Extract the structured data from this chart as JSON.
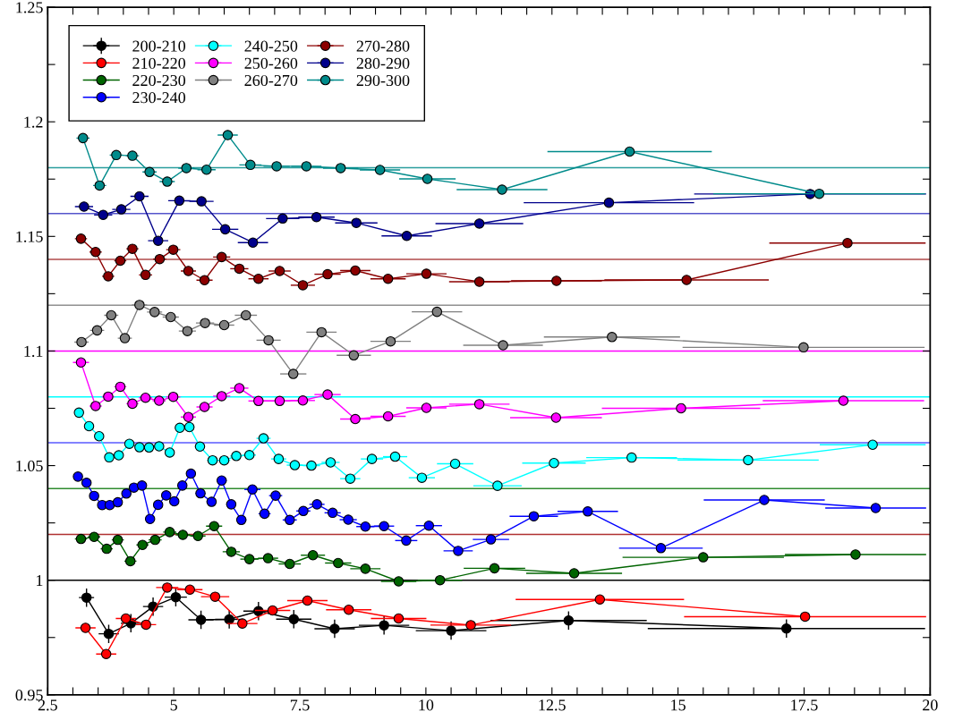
{
  "chart_data": {
    "type": "line",
    "marker": "circle",
    "line_style": "solid",
    "grid": false,
    "legend": "top left",
    "xlim": [
      2.5,
      20
    ],
    "ylim": [
      0.95,
      1.25
    ],
    "xticks": [
      2.5,
      {
        "value": 3,
        "label": null
      },
      {
        "value": 3.5,
        "label": null
      },
      {
        "value": 4,
        "label": null
      },
      {
        "value": 4.5,
        "label": null
      },
      5,
      {
        "value": 5.5,
        "label": null
      },
      {
        "value": 6,
        "label": null
      },
      {
        "value": 6.5,
        "label": null
      },
      {
        "value": 7,
        "label": null
      },
      7.5,
      {
        "value": 8,
        "label": null
      },
      {
        "value": 8.5,
        "label": null
      },
      {
        "value": 9,
        "label": null
      },
      {
        "value": 9.5,
        "label": null
      },
      10,
      {
        "value": 10.5,
        "label": null
      },
      {
        "value": 11,
        "label": null
      },
      {
        "value": 11.5,
        "label": null
      },
      {
        "value": 12,
        "label": null
      },
      12.5,
      {
        "value": 13,
        "label": null
      },
      {
        "value": 13.5,
        "label": null
      },
      {
        "value": 14,
        "label": null
      },
      {
        "value": 14.5,
        "label": null
      },
      15,
      {
        "value": 15.5,
        "label": null
      },
      {
        "value": 16,
        "label": null
      },
      {
        "value": 16.5,
        "label": null
      },
      {
        "value": 17,
        "label": null
      },
      17.5,
      {
        "value": 18,
        "label": null
      },
      {
        "value": 18.5,
        "label": null
      },
      {
        "value": 19,
        "label": null
      },
      {
        "value": 19.5,
        "label": null
      },
      20
    ],
    "yticks": [
      0.95,
      {
        "value": 0.975,
        "label": null
      },
      1,
      {
        "value": 1.025,
        "label": null
      },
      1.05,
      {
        "value": 1.075,
        "label": null
      },
      1.1,
      {
        "value": 1.125,
        "label": null
      },
      1.15,
      {
        "value": 1.175,
        "label": null
      },
      1.2,
      {
        "value": 1.225,
        "label": null
      },
      1.25
    ],
    "ref_lines": [
      {
        "axis": "y",
        "value": 1.18,
        "color": "#2a9d9d"
      },
      {
        "axis": "y",
        "value": 1.16,
        "color": "#5555cc"
      },
      {
        "axis": "y",
        "value": 1.14,
        "color": "#b04a4a"
      },
      {
        "axis": "y",
        "value": 1.12,
        "color": "#909090"
      },
      {
        "axis": "y",
        "value": 1.1,
        "color": "#ff00ff"
      },
      {
        "axis": "y",
        "value": 1.08,
        "color": "#00ffff"
      },
      {
        "axis": "y",
        "value": 1.06,
        "color": "#5a5aff"
      },
      {
        "axis": "y",
        "value": 1.04,
        "color": "#2e8b2e"
      },
      {
        "axis": "y",
        "value": 1.02,
        "color": "#b03030"
      },
      {
        "axis": "y",
        "value": 1.0,
        "color": "#000000"
      }
    ],
    "series": [
      {
        "name": "200-210",
        "color": "#000000",
        "x": [
          3.27,
          3.71,
          4.15,
          4.59,
          5.04,
          5.54,
          6.1,
          6.68,
          7.38,
          8.19,
          9.17,
          10.5,
          12.83,
          17.15
        ],
        "values": [
          0.9924,
          0.9766,
          0.9812,
          0.9885,
          0.9926,
          0.9827,
          0.9829,
          0.9865,
          0.983,
          0.9788,
          0.9803,
          0.978,
          0.9824,
          0.9789
        ],
        "errors": [
          0.004,
          0.004,
          0.004,
          0.004,
          0.004,
          0.004,
          0.004,
          0.004,
          0.004,
          0.004,
          0.004,
          0.004,
          0.004,
          0.004
        ],
        "xerrors": [
          0.15,
          0.2,
          0.2,
          0.2,
          0.22,
          0.25,
          0.28,
          0.3,
          0.35,
          0.4,
          0.5,
          0.7,
          1.55,
          2.75
        ]
      },
      {
        "name": "210-220",
        "color": "#ff0000",
        "x": [
          3.25,
          3.66,
          4.05,
          4.45,
          4.87,
          5.32,
          5.82,
          6.36,
          6.96,
          7.65,
          8.47,
          9.46,
          10.89,
          13.45,
          17.52
        ],
        "values": [
          0.9792,
          0.9678,
          0.9833,
          0.9806,
          0.9968,
          0.9959,
          0.9928,
          0.9811,
          0.9868,
          0.9911,
          0.9871,
          0.9833,
          0.9804,
          0.9916,
          0.9841
        ],
        "xerrors": [
          0.2,
          0.2,
          0.2,
          0.2,
          0.22,
          0.25,
          0.28,
          0.3,
          0.35,
          0.4,
          0.45,
          0.55,
          0.8,
          1.67,
          2.4
        ]
      },
      {
        "name": "220-230",
        "color": "#006400",
        "x": [
          3.16,
          3.42,
          3.67,
          3.89,
          4.14,
          4.38,
          4.63,
          4.92,
          5.18,
          5.48,
          5.8,
          6.14,
          6.5,
          6.87,
          7.3,
          7.76,
          8.26,
          8.8,
          9.46,
          10.28,
          11.36,
          12.94,
          15.5,
          18.52
        ],
        "values": [
          1.018,
          1.0189,
          1.0137,
          1.0176,
          1.0083,
          1.0154,
          1.0176,
          1.021,
          1.0198,
          1.0193,
          1.0236,
          1.0124,
          1.0092,
          1.0096,
          1.0071,
          1.0109,
          1.0075,
          1.005,
          0.9995,
          1.0,
          1.0052,
          1.003,
          1.01,
          1.0112
        ],
        "xerrors": [
          0.12,
          0.12,
          0.12,
          0.12,
          0.12,
          0.12,
          0.13,
          0.13,
          0.14,
          0.15,
          0.16,
          0.17,
          0.18,
          0.2,
          0.22,
          0.24,
          0.26,
          0.3,
          0.35,
          0.44,
          0.61,
          0.95,
          1.6,
          1.4
        ]
      },
      {
        "name": "230-240",
        "color": "#0000ff",
        "x": [
          3.1,
          3.27,
          3.42,
          3.58,
          3.73,
          3.89,
          4.06,
          4.21,
          4.37,
          4.53,
          4.69,
          4.85,
          5.01,
          5.17,
          5.34,
          5.53,
          5.75,
          5.95,
          6.14,
          6.34,
          6.56,
          6.8,
          7.02,
          7.3,
          7.57,
          7.84,
          8.15,
          8.46,
          8.8,
          9.17,
          9.61,
          10.06,
          10.64,
          11.29,
          12.14,
          13.21,
          14.66,
          16.71,
          18.92
        ],
        "values": [
          1.0452,
          1.0425,
          1.0368,
          1.0328,
          1.0328,
          1.034,
          1.0378,
          1.0404,
          1.0413,
          1.0267,
          1.0329,
          1.037,
          1.0344,
          1.0413,
          1.0465,
          1.0379,
          1.0342,
          1.0435,
          1.0331,
          1.0263,
          1.0396,
          1.029,
          1.0369,
          1.0263,
          1.0302,
          1.0331,
          1.0294,
          1.0264,
          1.0234,
          1.0236,
          1.0173,
          1.0238,
          1.0128,
          1.0178,
          1.0279,
          1.03,
          1.014,
          1.035,
          1.0315
        ],
        "xerrors": [
          0.08,
          0.08,
          0.08,
          0.08,
          0.08,
          0.08,
          0.08,
          0.08,
          0.08,
          0.08,
          0.08,
          0.08,
          0.08,
          0.08,
          0.09,
          0.1,
          0.1,
          0.1,
          0.1,
          0.1,
          0.16,
          0.12,
          0.13,
          0.14,
          0.14,
          0.15,
          0.16,
          0.17,
          0.18,
          0.2,
          0.22,
          0.26,
          0.29,
          0.36,
          0.48,
          0.6,
          0.83,
          1.2,
          1.0
        ]
      },
      {
        "name": "240-250",
        "color": "#00ffff",
        "x": [
          3.12,
          3.32,
          3.52,
          3.72,
          3.91,
          4.12,
          4.32,
          4.51,
          4.71,
          4.92,
          5.12,
          5.31,
          5.52,
          5.77,
          6.0,
          6.24,
          6.5,
          6.78,
          7.08,
          7.4,
          7.73,
          8.11,
          8.5,
          8.93,
          9.39,
          9.92,
          10.58,
          11.42,
          12.54,
          14.08,
          16.39,
          18.86
        ],
        "values": [
          1.0731,
          1.0672,
          1.0628,
          1.0536,
          1.0545,
          1.0595,
          1.058,
          1.0579,
          1.0584,
          1.0557,
          1.0665,
          1.0668,
          1.0583,
          1.0523,
          1.0523,
          1.0542,
          1.0546,
          1.0619,
          1.0529,
          1.0502,
          1.05,
          1.0514,
          1.0443,
          1.0529,
          1.0539,
          1.0447,
          1.0508,
          1.0412,
          1.0511,
          1.0535,
          1.0524,
          1.0591
        ],
        "xerrors": [
          0.08,
          0.08,
          0.08,
          0.08,
          0.08,
          0.08,
          0.08,
          0.08,
          0.08,
          0.08,
          0.09,
          0.1,
          0.1,
          0.11,
          0.12,
          0.12,
          0.13,
          0.14,
          0.15,
          0.16,
          0.17,
          0.18,
          0.2,
          0.22,
          0.24,
          0.26,
          0.36,
          0.48,
          0.63,
          0.9,
          1.4,
          1.05
        ]
      },
      {
        "name": "250-260",
        "color": "#ff00ff",
        "x": [
          3.16,
          3.45,
          3.7,
          3.94,
          4.18,
          4.44,
          4.71,
          4.99,
          5.29,
          5.61,
          5.95,
          6.3,
          6.68,
          7.1,
          7.56,
          8.05,
          8.6,
          9.25,
          10.01,
          11.06,
          12.58,
          15.06,
          18.28
        ],
        "values": [
          1.095,
          1.076,
          1.0801,
          1.0844,
          1.077,
          1.0796,
          1.0783,
          1.08,
          1.0712,
          1.0756,
          1.0803,
          1.0838,
          1.0782,
          1.0782,
          1.0784,
          1.081,
          1.0703,
          1.0715,
          1.0752,
          1.0768,
          1.0709,
          1.075,
          1.0783
        ],
        "xerrors": [
          0.16,
          0.12,
          0.12,
          0.12,
          0.12,
          0.13,
          0.13,
          0.14,
          0.15,
          0.16,
          0.17,
          0.18,
          0.2,
          0.22,
          0.24,
          0.26,
          0.3,
          0.35,
          0.4,
          0.6,
          0.91,
          1.57,
          1.6
        ]
      },
      {
        "name": "260-270",
        "color": "#808080",
        "x": [
          3.17,
          3.48,
          3.76,
          4.03,
          4.32,
          4.62,
          4.94,
          5.27,
          5.62,
          6.0,
          6.43,
          6.88,
          7.37,
          7.93,
          8.57,
          9.3,
          10.22,
          11.53,
          13.69,
          17.49
        ],
        "values": [
          1.1039,
          1.109,
          1.1156,
          1.1056,
          1.1201,
          1.117,
          1.1148,
          1.1087,
          1.1122,
          1.1113,
          1.1156,
          1.1047,
          1.09,
          1.1082,
          1.0981,
          1.1042,
          1.1171,
          1.1025,
          1.1061,
          1.1016
        ],
        "xerrors": [
          0.14,
          0.14,
          0.14,
          0.14,
          0.15,
          0.15,
          0.16,
          0.17,
          0.18,
          0.2,
          0.22,
          0.24,
          0.26,
          0.3,
          0.34,
          0.4,
          0.5,
          0.79,
          1.35,
          2.4
        ]
      },
      {
        "name": "270-280",
        "color": "#8b0000",
        "x": [
          3.16,
          3.45,
          3.7,
          3.94,
          4.18,
          4.44,
          4.72,
          4.99,
          5.29,
          5.61,
          5.95,
          6.3,
          6.68,
          7.1,
          7.56,
          8.05,
          8.6,
          9.25,
          10.01,
          11.06,
          12.59,
          15.17,
          18.36
        ],
        "values": [
          1.149,
          1.1432,
          1.1326,
          1.1394,
          1.1446,
          1.1332,
          1.1401,
          1.1442,
          1.1349,
          1.1309,
          1.141,
          1.1359,
          1.1315,
          1.1349,
          1.1287,
          1.1335,
          1.1351,
          1.1315,
          1.1337,
          1.1302,
          1.1306,
          1.131,
          1.1471
        ],
        "xerrors": [
          0.12,
          0.12,
          0.12,
          0.12,
          0.12,
          0.13,
          0.13,
          0.14,
          0.15,
          0.16,
          0.17,
          0.18,
          0.2,
          0.22,
          0.24,
          0.26,
          0.3,
          0.35,
          0.4,
          0.6,
          0.9,
          1.63,
          1.55
        ]
      },
      {
        "name": "280-290",
        "color": "#00008b",
        "x": [
          3.22,
          3.6,
          3.96,
          4.32,
          4.69,
          5.11,
          5.55,
          6.02,
          6.57,
          7.16,
          7.83,
          8.62,
          9.62,
          11.06,
          13.63,
          17.62
        ],
        "values": [
          1.163,
          1.1594,
          1.1618,
          1.1675,
          1.1481,
          1.1656,
          1.1653,
          1.1531,
          1.1473,
          1.1578,
          1.1584,
          1.1559,
          1.1502,
          1.1556,
          1.1647,
          1.1685
        ],
        "xerrors": [
          0.18,
          0.18,
          0.18,
          0.18,
          0.2,
          0.22,
          0.24,
          0.26,
          0.3,
          0.33,
          0.36,
          0.42,
          0.5,
          0.87,
          1.69,
          2.3
        ]
      },
      {
        "name": "290-300",
        "color": "#008b8b",
        "x": [
          3.2,
          3.53,
          3.86,
          4.18,
          4.52,
          4.87,
          5.25,
          5.65,
          6.07,
          6.52,
          7.04,
          7.63,
          8.31,
          9.09,
          10.03,
          11.51,
          14.04,
          17.8
        ],
        "values": [
          1.1929,
          1.1722,
          1.1855,
          1.1852,
          1.1781,
          1.1739,
          1.1798,
          1.1791,
          1.1942,
          1.1812,
          1.1806,
          1.1806,
          1.1798,
          1.179,
          1.1751,
          1.1704,
          1.187,
          1.1686
        ],
        "xerrors": [
          0.13,
          0.13,
          0.13,
          0.13,
          0.14,
          0.15,
          0.16,
          0.18,
          0.2,
          0.22,
          0.26,
          0.3,
          0.35,
          0.4,
          0.56,
          0.9,
          1.63,
          2.1
        ]
      }
    ]
  }
}
